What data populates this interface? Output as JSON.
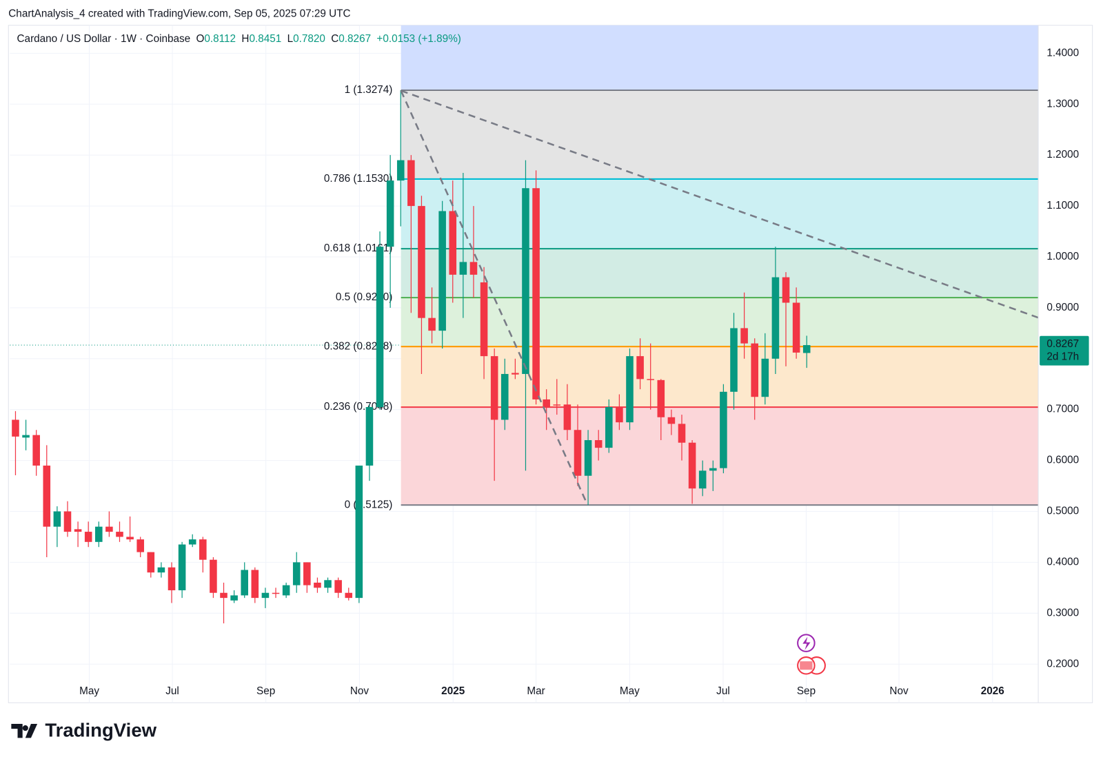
{
  "header": "ChartAnalysis_4 created with TradingView.com, Sep 05, 2025 07:29 UTC",
  "legend": {
    "symbol": "Cardano / US Dollar · 1W · Coinbase",
    "o_key": "O",
    "o": "0.8112",
    "h_key": "H",
    "h": "0.8451",
    "l_key": "L",
    "l": "0.7820",
    "c_key": "C",
    "c": "0.8267",
    "change": "+0.0153 (+1.89%)"
  },
  "chart_data": {
    "type": "candlestick",
    "up_color": "#089981",
    "down_color": "#f23645",
    "open": [
      0.68,
      0.645,
      0.65,
      0.59,
      0.47,
      0.5,
      0.465,
      0.46,
      0.44,
      0.47,
      0.46,
      0.45,
      0.445,
      0.42,
      0.38,
      0.39,
      0.345,
      0.435,
      0.445,
      0.405,
      0.34,
      0.325,
      0.335,
      0.385,
      0.33,
      0.34,
      0.335,
      0.355,
      0.4,
      0.36,
      0.35,
      0.365,
      0.34,
      0.33,
      0.59,
      0.705,
      1.02,
      1.15,
      1.19,
      1.1,
      0.88,
      0.855,
      1.09,
      0.965,
      0.99,
      0.95,
      0.805,
      0.68,
      0.772,
      0.77,
      1.135,
      0.72,
      0.71,
      0.71,
      0.66,
      0.57,
      0.64,
      0.625,
      0.705,
      0.675,
      0.805,
      0.76,
      0.758,
      0.685,
      0.672,
      0.635,
      0.545,
      0.58,
      0.585,
      0.735,
      0.86,
      0.83,
      0.725,
      0.8,
      0.96,
      0.91,
      0.8112
    ],
    "high": [
      0.697,
      0.68,
      0.66,
      0.63,
      0.51,
      0.52,
      0.48,
      0.48,
      0.48,
      0.5,
      0.48,
      0.49,
      0.45,
      0.42,
      0.4,
      0.4,
      0.44,
      0.455,
      0.45,
      0.41,
      0.36,
      0.345,
      0.4,
      0.39,
      0.35,
      0.35,
      0.36,
      0.42,
      0.4,
      0.37,
      0.37,
      0.37,
      0.35,
      0.59,
      0.71,
      1.05,
      1.2,
      1.3274,
      1.2,
      1.12,
      0.94,
      1.11,
      1.15,
      1.165,
      1.1,
      0.98,
      0.82,
      0.8,
      0.8,
      1.19,
      1.17,
      0.74,
      0.76,
      0.75,
      0.71,
      0.66,
      0.66,
      0.72,
      0.73,
      0.82,
      0.84,
      0.83,
      0.76,
      0.7,
      0.69,
      0.64,
      0.6,
      0.6,
      0.75,
      0.89,
      0.93,
      0.84,
      0.85,
      1.02,
      0.97,
      0.94,
      0.8451
    ],
    "low": [
      0.571,
      0.62,
      0.57,
      0.41,
      0.43,
      0.45,
      0.43,
      0.43,
      0.43,
      0.45,
      0.44,
      0.44,
      0.41,
      0.37,
      0.37,
      0.32,
      0.33,
      0.43,
      0.38,
      0.33,
      0.28,
      0.32,
      0.33,
      0.32,
      0.31,
      0.33,
      0.33,
      0.34,
      0.34,
      0.34,
      0.34,
      0.33,
      0.325,
      0.32,
      0.56,
      0.7,
      0.9,
      1.06,
      0.89,
      0.77,
      0.83,
      0.82,
      0.91,
      0.88,
      0.92,
      0.76,
      0.56,
      0.66,
      0.76,
      0.58,
      0.71,
      0.66,
      0.69,
      0.64,
      0.55,
      0.5125,
      0.6,
      0.615,
      0.66,
      0.66,
      0.74,
      0.7,
      0.64,
      0.65,
      0.6,
      0.515,
      0.53,
      0.54,
      0.575,
      0.7,
      0.8,
      0.68,
      0.71,
      0.77,
      0.785,
      0.8,
      0.782
    ],
    "close": [
      0.647,
      0.65,
      0.59,
      0.47,
      0.5,
      0.46,
      0.46,
      0.44,
      0.47,
      0.46,
      0.45,
      0.445,
      0.42,
      0.38,
      0.39,
      0.345,
      0.435,
      0.445,
      0.405,
      0.34,
      0.33,
      0.335,
      0.385,
      0.33,
      0.34,
      0.338,
      0.355,
      0.4,
      0.355,
      0.35,
      0.365,
      0.34,
      0.33,
      0.59,
      0.705,
      1.02,
      1.15,
      1.19,
      1.1,
      0.88,
      0.855,
      1.09,
      0.965,
      0.99,
      0.965,
      0.805,
      0.68,
      0.77,
      0.769,
      1.135,
      0.72,
      0.705,
      0.708,
      0.66,
      0.57,
      0.64,
      0.625,
      0.705,
      0.675,
      0.805,
      0.76,
      0.758,
      0.685,
      0.672,
      0.635,
      0.545,
      0.58,
      0.585,
      0.735,
      0.86,
      0.83,
      0.725,
      0.8,
      0.96,
      0.91,
      0.812,
      0.8267
    ],
    "xlim": [
      -0.54,
      98.24
    ],
    "xticks": [
      {
        "value": 7.09,
        "label": "May"
      },
      {
        "value": 15.07,
        "label": "Jul"
      },
      {
        "value": 24.05,
        "label": "Sep"
      },
      {
        "value": 33.04,
        "label": "Nov"
      },
      {
        "value": 42.03,
        "label": "2025"
      },
      {
        "value": 50,
        "label": "Mar"
      },
      {
        "value": 58.99,
        "label": "May"
      },
      {
        "value": 67.97,
        "label": "Jul"
      },
      {
        "value": 75.95,
        "label": "Sep"
      },
      {
        "value": 84.86,
        "label": "Nov"
      },
      {
        "value": 93.85,
        "label": "2026"
      }
    ],
    "ylim": [
      0.124,
      1.455
    ],
    "yticks": [
      {
        "value": 0.2,
        "label": "0.2000"
      },
      {
        "value": 0.3,
        "label": "0.3000"
      },
      {
        "value": 0.4,
        "label": "0.4000"
      },
      {
        "value": 0.5,
        "label": "0.5000"
      },
      {
        "value": 0.6,
        "label": "0.6000"
      },
      {
        "value": 0.7,
        "label": "0.7000"
      },
      {
        "value": 0.8,
        "label": "0.8000"
      },
      {
        "value": 0.9,
        "label": "0.9000"
      },
      {
        "value": 1.0,
        "label": "1.0000"
      },
      {
        "value": 1.1,
        "label": "1.1000"
      },
      {
        "value": 1.2,
        "label": "1.2000"
      },
      {
        "value": 1.3,
        "label": "1.3000"
      },
      {
        "value": 1.4,
        "label": "1.4000"
      }
    ],
    "grid": true,
    "last_price": 0.8267,
    "countdown": "2d 17h",
    "fib_top_fill": "#d1deff",
    "fib_levels": [
      {
        "ratio": 1,
        "price": 1.3274,
        "label": "1 (1.3274)",
        "color": "#787b86",
        "fill": "#e4e4e4"
      },
      {
        "ratio": 0.786,
        "price": 1.153,
        "label": "0.786 (1.1530)",
        "color": "#00bcd4",
        "fill": "#ccf0f3"
      },
      {
        "ratio": 0.618,
        "price": 1.0161,
        "label": "0.618 (1.0161)",
        "color": "#089981",
        "fill": "#d2ece4"
      },
      {
        "ratio": 0.5,
        "price": 0.92,
        "label": "0.5 (0.9200)",
        "color": "#4caf50",
        "fill": "#ddf1dc"
      },
      {
        "ratio": 0.382,
        "price": 0.8238,
        "label": "0.382 (0.8238)",
        "color": "#ff9800",
        "fill": "#fde8cc"
      },
      {
        "ratio": 0.236,
        "price": 0.7048,
        "label": "0.236 (0.7048)",
        "color": "#f23645",
        "fill": "#fbd6d9"
      },
      {
        "ratio": 0,
        "price": 0.5125,
        "label": "0 (0.5125)",
        "color": "#787b86"
      }
    ]
  },
  "footer": {
    "brand": "TradingView"
  }
}
